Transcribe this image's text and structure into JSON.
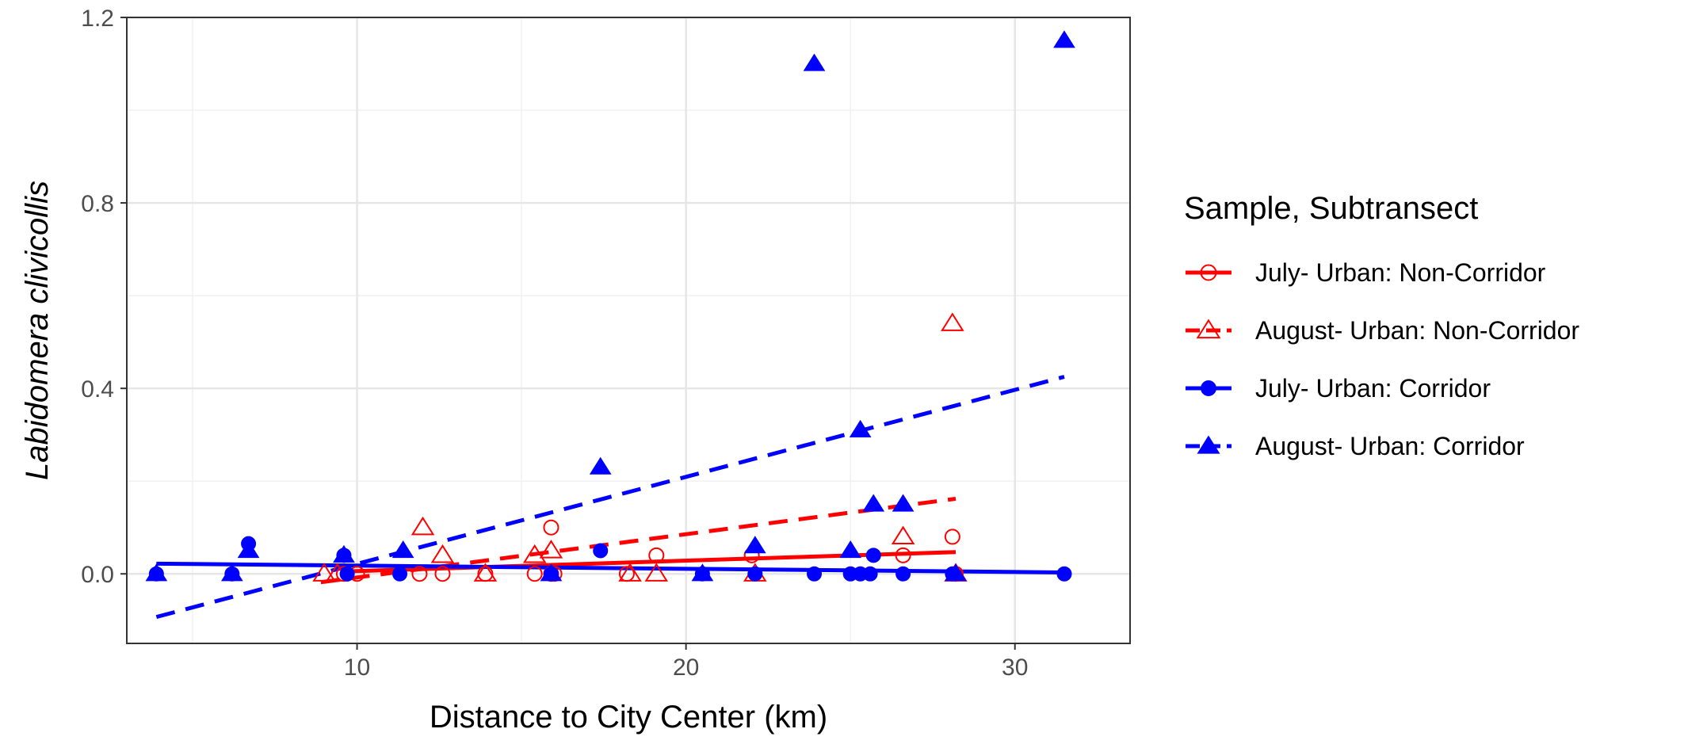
{
  "chart_data": {
    "type": "scatter",
    "xlabel": "Distance to City Center (km)",
    "ylabel": "Labidomera clivicollis",
    "xlim": [
      3.0,
      33.5
    ],
    "ylim": [
      -0.15,
      1.2
    ],
    "x_ticks": [
      10,
      20,
      30
    ],
    "y_ticks": [
      0.0,
      0.4,
      0.8,
      1.2
    ],
    "y_tick_labels": [
      "0.0",
      "0.4",
      "0.8",
      "1.2"
    ],
    "grid": true,
    "legend": {
      "title": "Sample, Subtransect",
      "position": "right"
    },
    "series": [
      {
        "name": "July- Urban: Non-Corridor",
        "color": "#ff0000",
        "marker": "circle-open",
        "line": "solid",
        "points": [
          [
            9.6,
            0.0
          ],
          [
            10.0,
            0.0
          ],
          [
            11.9,
            0.0
          ],
          [
            12.6,
            0.0
          ],
          [
            13.9,
            0.0
          ],
          [
            15.4,
            0.0
          ],
          [
            15.9,
            0.0
          ],
          [
            15.9,
            0.1
          ],
          [
            16.0,
            0.0
          ],
          [
            18.2,
            0.0
          ],
          [
            19.1,
            0.04
          ],
          [
            22.0,
            0.04
          ],
          [
            26.6,
            0.04
          ],
          [
            28.1,
            0.08
          ],
          [
            28.2,
            0.0
          ]
        ],
        "fit": [
          [
            9.6,
            0.005
          ],
          [
            28.2,
            0.047
          ]
        ]
      },
      {
        "name": "August- Urban: Non-Corridor",
        "color": "#ff0000",
        "marker": "triangle-open",
        "line": "dashed",
        "points": [
          [
            9.0,
            0.0
          ],
          [
            9.4,
            0.0
          ],
          [
            12.0,
            0.1
          ],
          [
            12.6,
            0.04
          ],
          [
            13.9,
            0.0
          ],
          [
            15.4,
            0.04
          ],
          [
            15.9,
            0.05
          ],
          [
            18.3,
            0.0
          ],
          [
            19.1,
            0.0
          ],
          [
            22.1,
            0.0
          ],
          [
            26.6,
            0.08
          ],
          [
            28.1,
            0.54
          ],
          [
            28.2,
            0.0
          ]
        ],
        "fit": [
          [
            8.9,
            -0.018
          ],
          [
            28.2,
            0.162
          ]
        ]
      },
      {
        "name": "July- Urban: Corridor",
        "color": "#0000ff",
        "marker": "circle-filled",
        "line": "solid",
        "points": [
          [
            3.9,
            0.0
          ],
          [
            6.2,
            0.0
          ],
          [
            6.7,
            0.065
          ],
          [
            9.6,
            0.04
          ],
          [
            9.7,
            0.0
          ],
          [
            11.3,
            0.0
          ],
          [
            15.9,
            0.0
          ],
          [
            17.4,
            0.05
          ],
          [
            20.5,
            0.0
          ],
          [
            22.1,
            0.0
          ],
          [
            23.9,
            0.0
          ],
          [
            25.0,
            0.0
          ],
          [
            25.3,
            0.0
          ],
          [
            25.6,
            0.0
          ],
          [
            25.7,
            0.04
          ],
          [
            26.6,
            0.0
          ],
          [
            28.1,
            0.0
          ],
          [
            31.5,
            0.0
          ]
        ],
        "fit": [
          [
            3.9,
            0.022
          ],
          [
            31.5,
            0.003
          ]
        ]
      },
      {
        "name": "August- Urban: Corridor",
        "color": "#0000ff",
        "marker": "triangle-filled",
        "line": "dashed",
        "points": [
          [
            3.9,
            0.0
          ],
          [
            6.2,
            0.0
          ],
          [
            6.7,
            0.05
          ],
          [
            9.6,
            0.04
          ],
          [
            11.4,
            0.05
          ],
          [
            15.9,
            0.0
          ],
          [
            17.4,
            0.23
          ],
          [
            20.5,
            0.0
          ],
          [
            22.1,
            0.06
          ],
          [
            23.9,
            1.1
          ],
          [
            25.0,
            0.05
          ],
          [
            25.3,
            0.31
          ],
          [
            25.7,
            0.15
          ],
          [
            26.6,
            0.15
          ],
          [
            28.2,
            0.0
          ],
          [
            31.5,
            1.15
          ]
        ],
        "fit": [
          [
            3.9,
            -0.093
          ],
          [
            31.5,
            0.425
          ]
        ]
      }
    ]
  }
}
